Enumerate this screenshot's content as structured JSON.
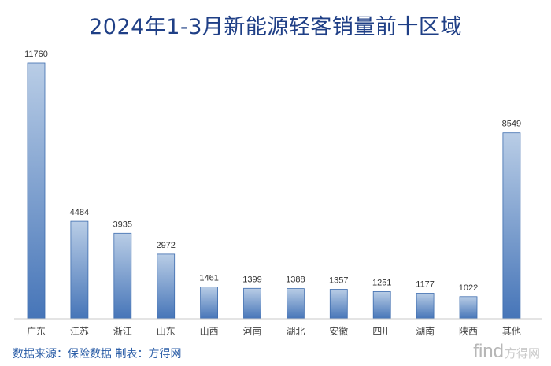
{
  "chart_data": {
    "type": "bar",
    "title": "2024年1-3月新能源轻客销量前十区域",
    "categories": [
      "广东",
      "江苏",
      "浙江",
      "山东",
      "山西",
      "河南",
      "湖北",
      "安徽",
      "四川",
      "湖南",
      "陕西",
      "其他"
    ],
    "values": [
      11760,
      4484,
      3935,
      2972,
      1461,
      1399,
      1388,
      1357,
      1251,
      1177,
      1022,
      8549
    ],
    "ylim": [
      0,
      11760
    ],
    "grid": false,
    "legend": "none",
    "colors": {
      "bar_top": "#b9cde6",
      "bar_bottom": "#4675b8",
      "bar_stroke": "#3d6cae",
      "title": "#1f3f86",
      "axis": "#c8c8c8"
    }
  },
  "source_note": "数据来源：保险数据  制表：方得网",
  "watermark": {
    "latin": "find",
    "cjk": "方得网"
  }
}
